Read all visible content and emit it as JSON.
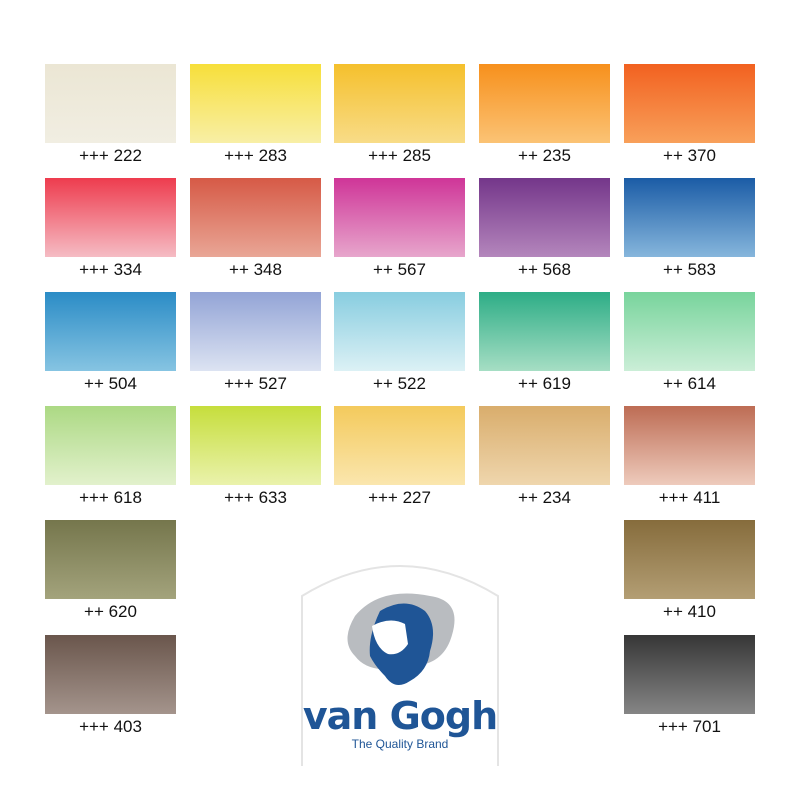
{
  "swatches": [
    {
      "label": "+++ 222",
      "colors": [
        "#ebe6d4",
        "#f1eee2"
      ]
    },
    {
      "label": "+++ 283",
      "colors": [
        "#f7df3a",
        "#f8efa6"
      ]
    },
    {
      "label": "+++ 285",
      "colors": [
        "#f5c02c",
        "#f8dc88"
      ]
    },
    {
      "label": "++ 235",
      "colors": [
        "#f7901c",
        "#fbc375"
      ]
    },
    {
      "label": "++ 370",
      "colors": [
        "#f26120",
        "#f8a05a"
      ]
    },
    {
      "label": "+++ 334",
      "colors": [
        "#ee3c4e",
        "#f5bcc4"
      ]
    },
    {
      "label": "++ 348",
      "colors": [
        "#d65a46",
        "#e9a696"
      ]
    },
    {
      "label": "++ 567",
      "colors": [
        "#cf3598",
        "#e7a6cc"
      ]
    },
    {
      "label": "++ 568",
      "colors": [
        "#74368a",
        "#b486bc"
      ]
    },
    {
      "label": "++ 583",
      "colors": [
        "#1b5ca6",
        "#86b6dc"
      ]
    },
    {
      "label": "++ 504",
      "colors": [
        "#2b8cc6",
        "#86c4e2"
      ]
    },
    {
      "label": "+++ 527",
      "colors": [
        "#93a4d6",
        "#dce3f2"
      ]
    },
    {
      "label": "++ 522",
      "colors": [
        "#88cde0",
        "#dcf1f5"
      ]
    },
    {
      "label": "++ 619",
      "colors": [
        "#2dad86",
        "#a6dec4"
      ]
    },
    {
      "label": "++ 614",
      "colors": [
        "#78d49c",
        "#cbeed7"
      ]
    },
    {
      "label": "+++ 618",
      "colors": [
        "#acd984",
        "#e2f1cc"
      ]
    },
    {
      "label": "+++ 633",
      "colors": [
        "#c6de3c",
        "#eaf2ac"
      ]
    },
    {
      "label": "+++ 227",
      "colors": [
        "#f4ca5c",
        "#fae6ae"
      ]
    },
    {
      "label": "++ 234",
      "colors": [
        "#d9ad6c",
        "#efd6ad"
      ]
    },
    {
      "label": "+++ 411",
      "colors": [
        "#bd6c54",
        "#eecbbc"
      ]
    },
    {
      "label": "++ 620",
      "colors": [
        "#75764c",
        "#a3a37c"
      ]
    },
    {
      "label": "++ 410",
      "colors": [
        "#866c3c",
        "#b39e74"
      ]
    },
    {
      "label": "+++ 403",
      "colors": [
        "#6a564c",
        "#a4948c"
      ]
    },
    {
      "label": "+++ 701",
      "colors": [
        "#363636",
        "#858585"
      ]
    }
  ],
  "logo": {
    "name": "van Gogh",
    "tagline": "The Quality Brand",
    "color": "#1f5596"
  }
}
